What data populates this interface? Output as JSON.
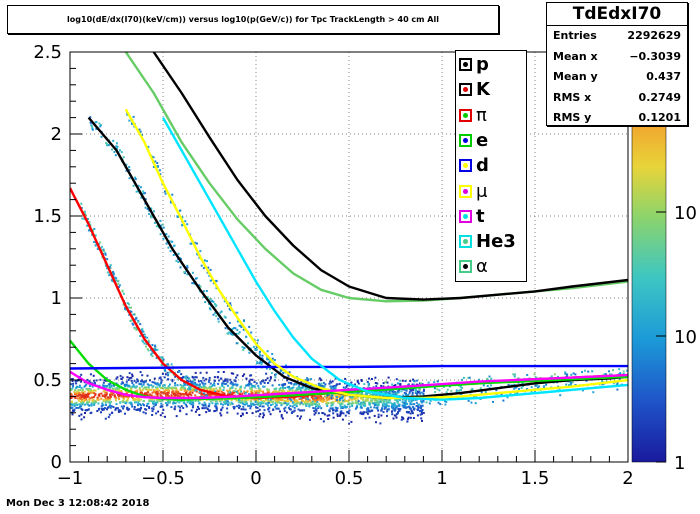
{
  "title": "log10(dE/dx(I70)(keV/cm)) versus log10(p(GeV/c)) for Tpc TrackLength > 40 cm All",
  "stats": {
    "name": "TdEdxI70",
    "rows": [
      {
        "label": "Entries",
        "value": "2292629"
      },
      {
        "label": "Mean x",
        "value": "−0.3039"
      },
      {
        "label": "Mean y",
        "value": "0.437"
      },
      {
        "label": "RMS x",
        "value": "0.2749"
      },
      {
        "label": "RMS y",
        "value": "0.1201"
      }
    ]
  },
  "footer": "Mon Dec  3 12:08:42 2018",
  "legend": [
    {
      "label": "p",
      "box": "#000000",
      "dot": "#000000",
      "greek": false
    },
    {
      "label": "K",
      "box": "#000000",
      "dot": "#e00000",
      "greek": false
    },
    {
      "label": "π",
      "box": "#e00000",
      "dot": "#00cc00",
      "greek": true
    },
    {
      "label": "e",
      "box": "#00cc00",
      "dot": "#0000e0",
      "greek": false
    },
    {
      "label": "d",
      "box": "#0000e0",
      "dot": "#ffff00",
      "greek": false
    },
    {
      "label": "μ",
      "box": "#ffff00",
      "dot": "#e000e0",
      "greek": true
    },
    {
      "label": "t",
      "box": "#e000e0",
      "dot": "#00e0e0",
      "greek": false
    },
    {
      "label": "He3",
      "box": "#00e0e0",
      "dot": "#44cc88",
      "greek": false
    },
    {
      "label": "α",
      "box": "#44cc88",
      "dot": "#000000",
      "greek": true
    }
  ],
  "chart_data": {
    "type": "heatmap",
    "xlim": [
      -1,
      2
    ],
    "ylim": [
      0,
      2.5
    ],
    "x_ticks": [
      "−1",
      "−0.5",
      "0",
      "0.5",
      "1",
      "1.5",
      "2"
    ],
    "y_ticks": [
      "0",
      "0.5",
      "1",
      "1.5",
      "2",
      "2.5"
    ],
    "z_scale": "log",
    "z_ticks": [
      "1",
      "10",
      "10"
    ],
    "grid": true,
    "legend_position": "top-right",
    "curves": [
      {
        "label": "p",
        "color": "#000000",
        "points": [
          [
            -0.9,
            2.1
          ],
          [
            -0.75,
            1.9
          ],
          [
            -0.6,
            1.6
          ],
          [
            -0.45,
            1.3
          ],
          [
            -0.3,
            1.05
          ],
          [
            -0.15,
            0.82
          ],
          [
            0,
            0.65
          ],
          [
            0.15,
            0.52
          ],
          [
            0.3,
            0.45
          ],
          [
            0.5,
            0.41
          ],
          [
            0.7,
            0.39
          ],
          [
            0.9,
            0.4
          ],
          [
            1.1,
            0.42
          ],
          [
            1.3,
            0.45
          ],
          [
            1.5,
            0.48
          ],
          [
            1.7,
            0.5
          ],
          [
            1.9,
            0.51
          ],
          [
            2.0,
            0.52
          ]
        ]
      },
      {
        "label": "K",
        "color": "#ff0000",
        "points": [
          [
            -1,
            1.67
          ],
          [
            -0.9,
            1.45
          ],
          [
            -0.8,
            1.2
          ],
          [
            -0.7,
            0.95
          ],
          [
            -0.6,
            0.75
          ],
          [
            -0.5,
            0.6
          ],
          [
            -0.4,
            0.5
          ],
          [
            -0.3,
            0.44
          ],
          [
            -0.15,
            0.4
          ],
          [
            0,
            0.39
          ],
          [
            0.2,
            0.4
          ],
          [
            0.4,
            0.42
          ],
          [
            0.6,
            0.44
          ],
          [
            0.8,
            0.46
          ],
          [
            1.0,
            0.47
          ],
          [
            1.2,
            0.48
          ],
          [
            1.4,
            0.5
          ],
          [
            1.6,
            0.51
          ],
          [
            1.8,
            0.52
          ],
          [
            2.0,
            0.53
          ]
        ]
      },
      {
        "label": "π",
        "color": "#00dd00",
        "points": [
          [
            -1,
            0.74
          ],
          [
            -0.9,
            0.6
          ],
          [
            -0.8,
            0.5
          ],
          [
            -0.7,
            0.44
          ],
          [
            -0.6,
            0.4
          ],
          [
            -0.5,
            0.385
          ],
          [
            -0.4,
            0.38
          ],
          [
            -0.3,
            0.385
          ],
          [
            -0.1,
            0.39
          ],
          [
            0.1,
            0.4
          ],
          [
            0.4,
            0.42
          ],
          [
            0.8,
            0.45
          ],
          [
            1.2,
            0.48
          ],
          [
            1.6,
            0.5
          ],
          [
            2.0,
            0.52
          ]
        ]
      },
      {
        "label": "e",
        "color": "#0000ff",
        "points": [
          [
            -1,
            0.57
          ],
          [
            -0.5,
            0.575
          ],
          [
            0,
            0.58
          ],
          [
            0.5,
            0.58
          ],
          [
            1,
            0.585
          ],
          [
            1.5,
            0.585
          ],
          [
            2.0,
            0.585
          ]
        ]
      },
      {
        "label": "d",
        "color": "#ffff00",
        "points": [
          [
            -0.7,
            2.15
          ],
          [
            -0.6,
            1.95
          ],
          [
            -0.5,
            1.7
          ],
          [
            -0.4,
            1.48
          ],
          [
            -0.3,
            1.25
          ],
          [
            -0.2,
            1.05
          ],
          [
            -0.1,
            0.88
          ],
          [
            0,
            0.72
          ],
          [
            0.1,
            0.6
          ],
          [
            0.2,
            0.52
          ],
          [
            0.35,
            0.45
          ],
          [
            0.5,
            0.41
          ],
          [
            0.7,
            0.39
          ],
          [
            0.9,
            0.39
          ],
          [
            1.1,
            0.4
          ],
          [
            1.3,
            0.42
          ],
          [
            1.5,
            0.44
          ],
          [
            1.7,
            0.46
          ],
          [
            2.0,
            0.5
          ]
        ]
      },
      {
        "label": "μ",
        "color": "#ff00ff",
        "points": [
          [
            -1,
            0.55
          ],
          [
            -0.9,
            0.48
          ],
          [
            -0.8,
            0.44
          ],
          [
            -0.7,
            0.41
          ],
          [
            -0.6,
            0.395
          ],
          [
            -0.5,
            0.39
          ],
          [
            -0.3,
            0.39
          ],
          [
            -0.1,
            0.4
          ],
          [
            0.2,
            0.42
          ],
          [
            0.5,
            0.44
          ],
          [
            0.8,
            0.46
          ],
          [
            1.2,
            0.49
          ],
          [
            1.6,
            0.51
          ],
          [
            2.0,
            0.53
          ]
        ]
      },
      {
        "label": "t",
        "color": "#00e5ff",
        "points": [
          [
            -0.5,
            2.1
          ],
          [
            -0.4,
            1.9
          ],
          [
            -0.3,
            1.7
          ],
          [
            -0.2,
            1.5
          ],
          [
            -0.1,
            1.3
          ],
          [
            0,
            1.1
          ],
          [
            0.1,
            0.92
          ],
          [
            0.2,
            0.76
          ],
          [
            0.3,
            0.63
          ],
          [
            0.45,
            0.5
          ],
          [
            0.6,
            0.43
          ],
          [
            0.8,
            0.39
          ],
          [
            1.0,
            0.38
          ],
          [
            1.2,
            0.39
          ],
          [
            1.4,
            0.41
          ],
          [
            1.6,
            0.43
          ],
          [
            1.8,
            0.45
          ],
          [
            2.0,
            0.47
          ]
        ]
      },
      {
        "label": "He3",
        "color": "#66cc66",
        "points": [
          [
            -0.7,
            2.5
          ],
          [
            -0.55,
            2.25
          ],
          [
            -0.4,
            1.95
          ],
          [
            -0.25,
            1.7
          ],
          [
            -0.1,
            1.48
          ],
          [
            0.05,
            1.3
          ],
          [
            0.2,
            1.15
          ],
          [
            0.35,
            1.05
          ],
          [
            0.5,
            1.0
          ],
          [
            0.7,
            0.98
          ],
          [
            0.9,
            0.985
          ],
          [
            1.1,
            1.0
          ],
          [
            1.3,
            1.02
          ],
          [
            1.5,
            1.04
          ],
          [
            1.7,
            1.06
          ],
          [
            2.0,
            1.1
          ]
        ]
      },
      {
        "label": "α",
        "color": "#000000",
        "points": [
          [
            -0.55,
            2.5
          ],
          [
            -0.4,
            2.25
          ],
          [
            -0.25,
            1.98
          ],
          [
            -0.1,
            1.72
          ],
          [
            0.05,
            1.5
          ],
          [
            0.2,
            1.32
          ],
          [
            0.35,
            1.17
          ],
          [
            0.5,
            1.07
          ],
          [
            0.7,
            1.0
          ],
          [
            0.9,
            0.99
          ],
          [
            1.1,
            1.0
          ],
          [
            1.3,
            1.02
          ],
          [
            1.5,
            1.04
          ],
          [
            1.7,
            1.07
          ],
          [
            2.0,
            1.11
          ]
        ]
      }
    ]
  }
}
